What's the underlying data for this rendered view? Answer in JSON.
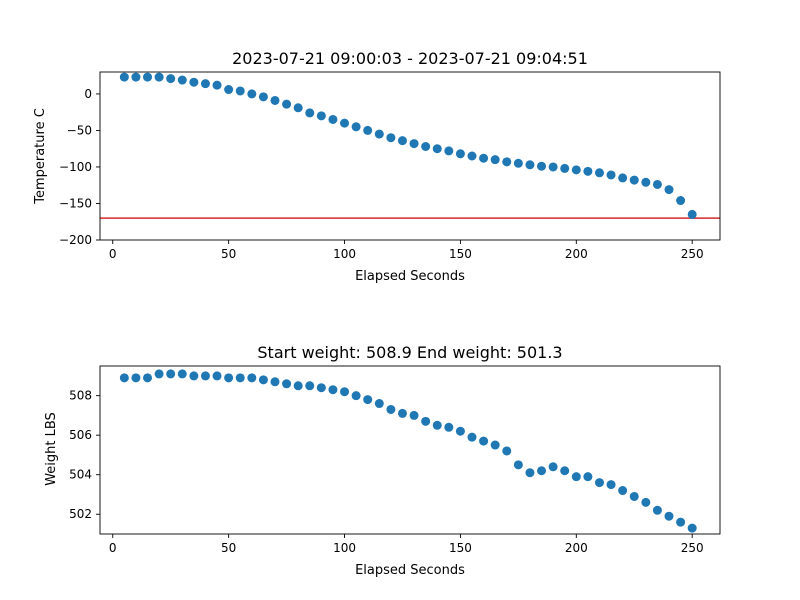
{
  "chart_data": [
    {
      "type": "scatter",
      "title": "2023-07-21 09:00:03 - 2023-07-21 09:04:51",
      "xlabel": "Elapsed Seconds",
      "ylabel": "Temperature C",
      "xlim": [
        -5.5,
        262
      ],
      "ylim": [
        -200,
        30
      ],
      "xticks": [
        0,
        50,
        100,
        150,
        200,
        250
      ],
      "yticks": [
        -200,
        -150,
        -100,
        -50,
        0
      ],
      "ytick_labels": [
        "−200",
        "−150",
        "−100",
        "−50",
        "0"
      ],
      "grid": false,
      "hline": {
        "y": -170,
        "color": "#d62728"
      },
      "marker_color": "#1f77b4",
      "x": [
        5,
        10,
        15,
        20,
        25,
        30,
        35,
        40,
        45,
        50,
        55,
        60,
        65,
        70,
        75,
        80,
        85,
        90,
        95,
        100,
        105,
        110,
        115,
        120,
        125,
        130,
        135,
        140,
        145,
        150,
        155,
        160,
        165,
        170,
        175,
        180,
        185,
        190,
        195,
        200,
        205,
        210,
        215,
        220,
        225,
        230,
        235,
        240,
        245,
        250
      ],
      "y": [
        23,
        23,
        23,
        23,
        21,
        19,
        16,
        14,
        12,
        6,
        4,
        0,
        -4,
        -9,
        -14,
        -19,
        -26,
        -30,
        -35,
        -40,
        -45,
        -50,
        -55,
        -60,
        -64,
        -68,
        -72,
        -75,
        -78,
        -82,
        -85,
        -88,
        -90,
        -93,
        -95,
        -97,
        -99,
        -100,
        -102,
        -104,
        -106,
        -108,
        -111,
        -115,
        -118,
        -121,
        -124,
        -131,
        -146,
        -165
      ]
    },
    {
      "type": "scatter",
      "title": "Start weight: 508.9 End weight: 501.3",
      "xlabel": "Elapsed Seconds",
      "ylabel": "Weight LBS",
      "xlim": [
        -5.5,
        262
      ],
      "ylim": [
        501.0,
        509.5
      ],
      "xticks": [
        0,
        50,
        100,
        150,
        200,
        250
      ],
      "yticks": [
        502,
        504,
        506,
        508
      ],
      "ytick_labels": [
        "502",
        "504",
        "506",
        "508"
      ],
      "grid": false,
      "marker_color": "#1f77b4",
      "x": [
        5,
        10,
        15,
        20,
        25,
        30,
        35,
        40,
        45,
        50,
        55,
        60,
        65,
        70,
        75,
        80,
        85,
        90,
        95,
        100,
        105,
        110,
        115,
        120,
        125,
        130,
        135,
        140,
        145,
        150,
        155,
        160,
        165,
        170,
        175,
        180,
        185,
        190,
        195,
        200,
        205,
        210,
        215,
        220,
        225,
        230,
        235,
        240,
        245,
        250
      ],
      "y": [
        508.9,
        508.9,
        508.9,
        509.1,
        509.1,
        509.1,
        509.0,
        509.0,
        509.0,
        508.9,
        508.9,
        508.9,
        508.8,
        508.7,
        508.6,
        508.5,
        508.5,
        508.4,
        508.3,
        508.2,
        508.0,
        507.8,
        507.6,
        507.3,
        507.1,
        507.0,
        506.7,
        506.5,
        506.4,
        506.2,
        505.9,
        505.7,
        505.5,
        505.2,
        504.5,
        504.1,
        504.2,
        504.4,
        504.2,
        503.9,
        503.9,
        503.6,
        503.5,
        503.2,
        502.9,
        502.6,
        502.2,
        501.9,
        501.6,
        501.3
      ]
    }
  ]
}
